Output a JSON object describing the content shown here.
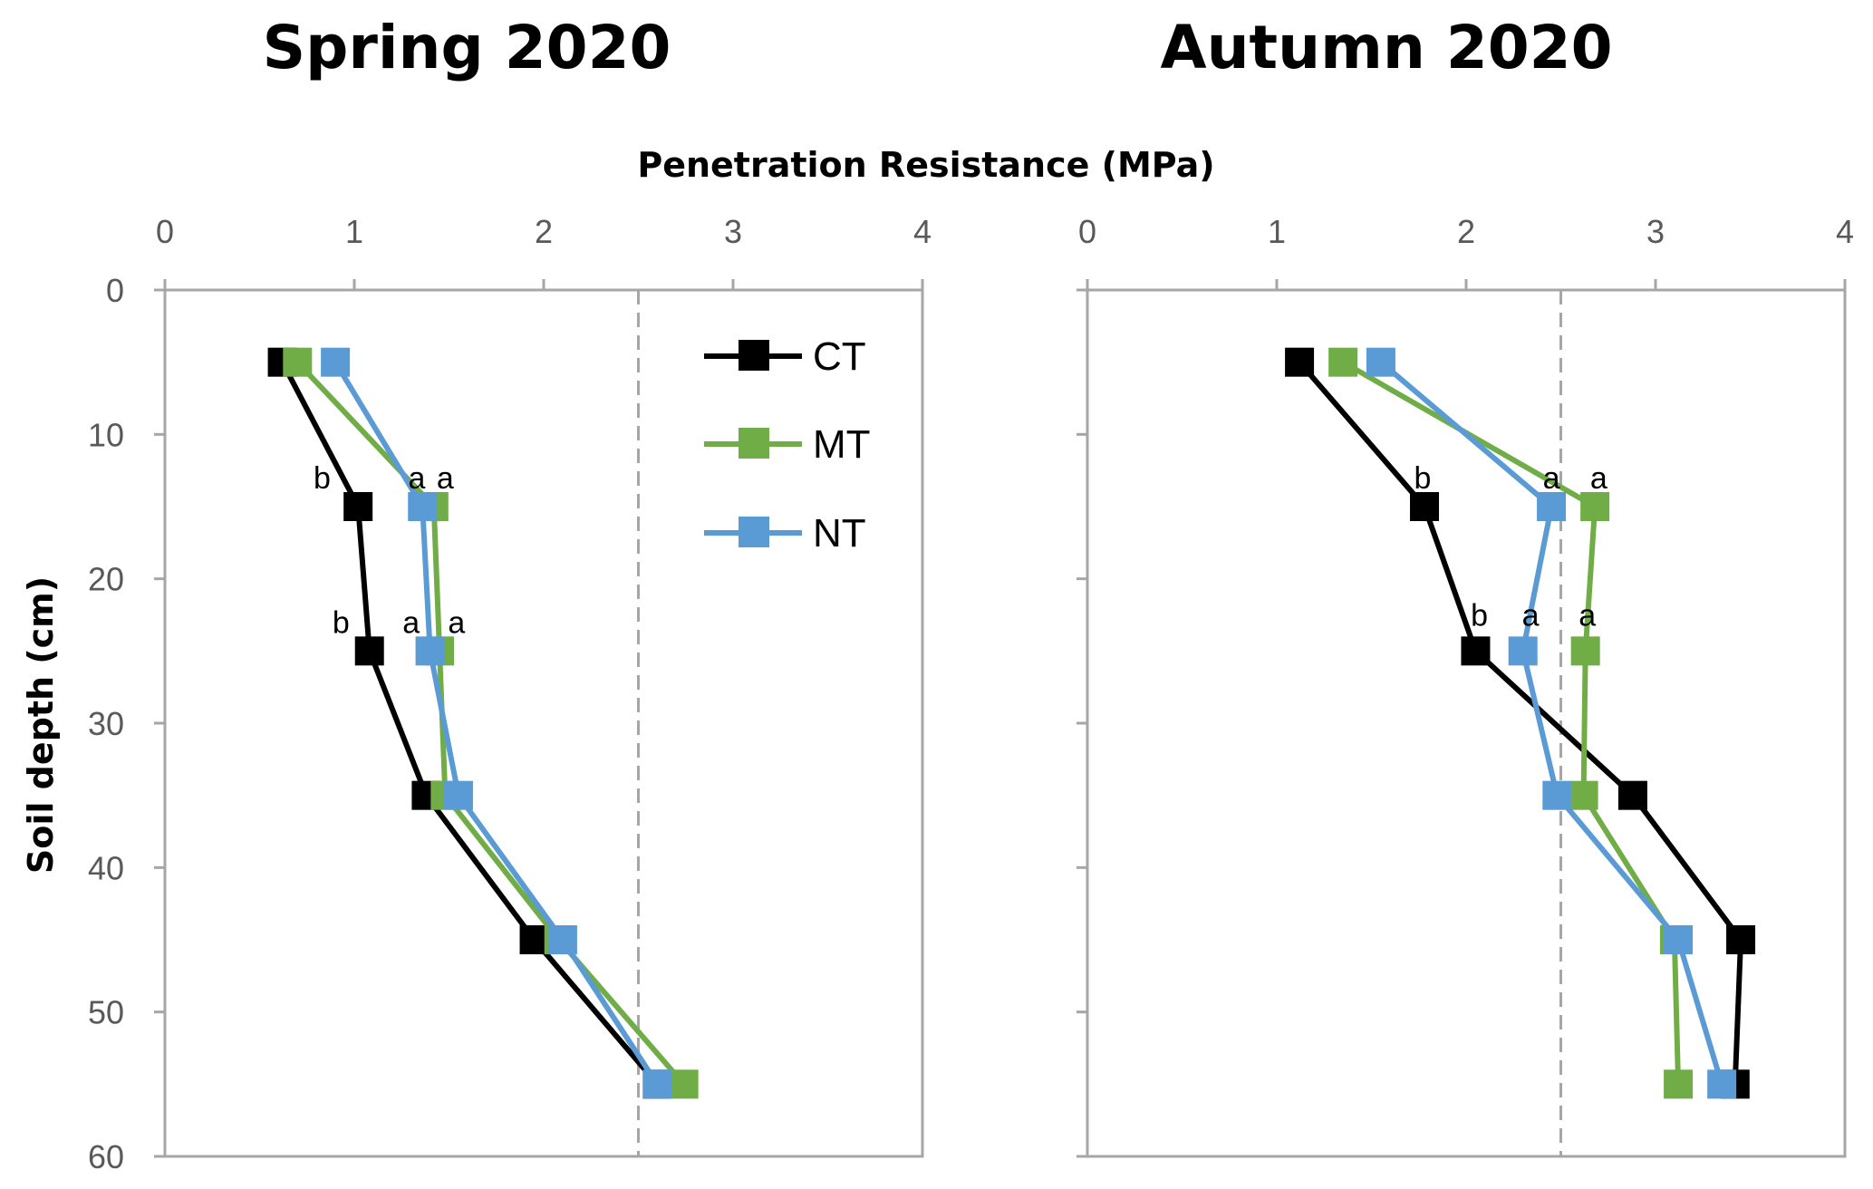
{
  "colors": {
    "CT": "#000000",
    "MT": "#70ad47",
    "NT": "#5b9bd5",
    "axis": "#a6a6a6",
    "tick_label": "#595959",
    "reference_line": "#a6a6a6"
  },
  "x_axis_title": "Penetration Resistance (MPa)",
  "y_axis_title": "Soil depth (cm)",
  "legend": [
    {
      "key": "CT",
      "label": "CT"
    },
    {
      "key": "MT",
      "label": "MT"
    },
    {
      "key": "NT",
      "label": "NT"
    }
  ],
  "chart_data": [
    {
      "type": "line",
      "title": "Spring 2020",
      "xlabel": "Penetration Resistance (MPa)",
      "ylabel": "Soil depth (cm)",
      "xlim": [
        0,
        4
      ],
      "ylim": [
        0,
        60
      ],
      "y_inverted": true,
      "x_axis_position": "top",
      "x_ticks": [
        "0",
        "1",
        "2",
        "3",
        "4"
      ],
      "y_ticks": [
        "0",
        "10",
        "20",
        "30",
        "40",
        "50",
        "60"
      ],
      "reference_line_x": 2.5,
      "reference_line_style": "dashed",
      "legend_position": "top-right",
      "series": [
        {
          "name": "CT",
          "key": "CT",
          "points": [
            [
              0.62,
              5
            ],
            [
              1.02,
              15
            ],
            [
              1.08,
              25
            ],
            [
              1.38,
              35
            ],
            [
              1.95,
              45
            ],
            [
              2.6,
              55
            ]
          ]
        },
        {
          "name": "MT",
          "key": "MT",
          "points": [
            [
              0.7,
              5
            ],
            [
              1.42,
              15
            ],
            [
              1.45,
              25
            ],
            [
              1.48,
              35
            ],
            [
              2.08,
              45
            ],
            [
              2.74,
              55
            ]
          ]
        },
        {
          "name": "NT",
          "key": "NT",
          "points": [
            [
              0.9,
              5
            ],
            [
              1.36,
              15
            ],
            [
              1.4,
              25
            ],
            [
              1.55,
              35
            ],
            [
              2.1,
              45
            ],
            [
              2.6,
              55
            ]
          ]
        }
      ],
      "annotations": [
        {
          "text": "b",
          "x": 0.83,
          "y": 13
        },
        {
          "text": "a",
          "x": 1.33,
          "y": 13
        },
        {
          "text": "a",
          "x": 1.48,
          "y": 13
        },
        {
          "text": "b",
          "x": 0.93,
          "y": 23
        },
        {
          "text": "a",
          "x": 1.3,
          "y": 23
        },
        {
          "text": "a",
          "x": 1.54,
          "y": 23
        }
      ]
    },
    {
      "type": "line",
      "title": "Autumn 2020",
      "xlabel": "",
      "ylabel": "",
      "xlim": [
        0,
        4
      ],
      "ylim": [
        0,
        60
      ],
      "y_inverted": true,
      "x_axis_position": "top",
      "x_ticks": [
        "0",
        "1",
        "2",
        "3",
        "4"
      ],
      "y_ticks": [],
      "reference_line_x": 2.5,
      "reference_line_style": "dashed",
      "series": [
        {
          "name": "CT",
          "key": "CT",
          "points": [
            [
              1.12,
              5
            ],
            [
              1.78,
              15
            ],
            [
              2.05,
              25
            ],
            [
              2.88,
              35
            ],
            [
              3.45,
              45
            ],
            [
              3.42,
              55
            ]
          ]
        },
        {
          "name": "MT",
          "key": "MT",
          "points": [
            [
              1.35,
              5
            ],
            [
              2.68,
              15
            ],
            [
              2.63,
              25
            ],
            [
              2.62,
              35
            ],
            [
              3.1,
              45
            ],
            [
              3.12,
              55
            ]
          ]
        },
        {
          "name": "NT",
          "key": "NT",
          "points": [
            [
              1.55,
              5
            ],
            [
              2.45,
              15
            ],
            [
              2.3,
              25
            ],
            [
              2.48,
              35
            ],
            [
              3.12,
              45
            ],
            [
              3.35,
              55
            ]
          ]
        }
      ],
      "annotations": [
        {
          "text": "b",
          "x": 1.77,
          "y": 13
        },
        {
          "text": "a",
          "x": 2.45,
          "y": 13
        },
        {
          "text": "a",
          "x": 2.7,
          "y": 13
        },
        {
          "text": "b",
          "x": 2.07,
          "y": 22.5
        },
        {
          "text": "a",
          "x": 2.34,
          "y": 22.5
        },
        {
          "text": "a",
          "x": 2.64,
          "y": 22.5
        }
      ]
    }
  ]
}
